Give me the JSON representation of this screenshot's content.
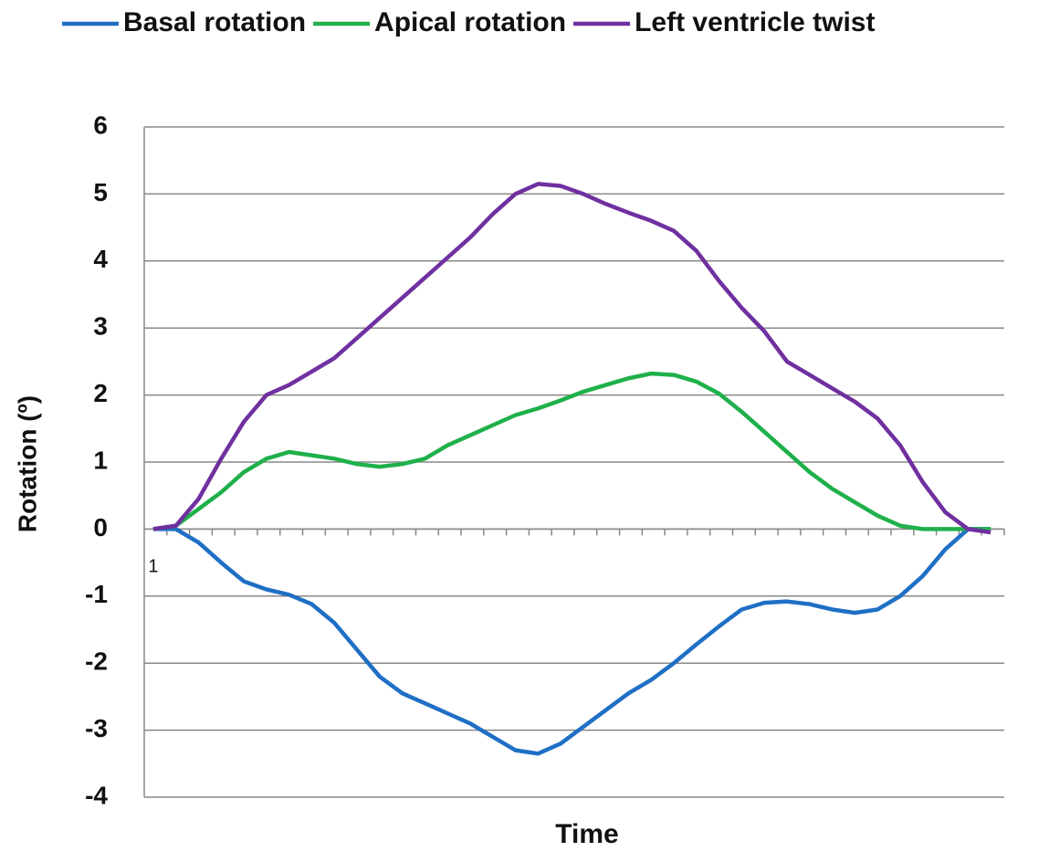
{
  "chart_data": {
    "type": "line",
    "categories": [
      "1",
      null,
      null,
      null,
      null,
      null,
      null,
      null,
      null,
      null,
      null,
      null,
      null,
      null,
      null,
      null,
      null,
      null,
      null,
      null,
      null,
      null,
      null,
      null,
      null,
      null,
      null,
      null,
      null,
      null,
      null,
      null,
      null,
      null,
      null,
      null,
      null,
      null
    ],
    "series": [
      {
        "name": "Basal rotation",
        "color": "#1f6fc5",
        "values": [
          0,
          0,
          -0.2,
          -0.5,
          -0.78,
          -0.9,
          -0.98,
          -1.12,
          -1.4,
          -1.8,
          -2.2,
          -2.45,
          -2.6,
          -2.75,
          -2.9,
          -3.1,
          -3.3,
          -3.35,
          -3.2,
          -2.95,
          -2.7,
          -2.45,
          -2.25,
          -2.0,
          -1.72,
          -1.45,
          -1.2,
          -1.1,
          -1.08,
          -1.12,
          -1.2,
          -1.25,
          -1.2,
          -1.0,
          -0.7,
          -0.3,
          0,
          0
        ]
      },
      {
        "name": "Apical rotation",
        "color": "#1fb04a",
        "values": [
          0,
          0.05,
          0.3,
          0.55,
          0.85,
          1.05,
          1.15,
          1.1,
          1.05,
          0.97,
          0.93,
          0.97,
          1.05,
          1.25,
          1.4,
          1.55,
          1.7,
          1.8,
          1.92,
          2.05,
          2.15,
          2.25,
          2.32,
          2.3,
          2.2,
          2.02,
          1.75,
          1.45,
          1.15,
          0.85,
          0.6,
          0.4,
          0.2,
          0.05,
          0,
          0,
          0,
          0
        ]
      },
      {
        "name": "Left ventricle twist",
        "color": "#7030a0",
        "values": [
          0,
          0.05,
          0.45,
          1.05,
          1.6,
          2.0,
          2.15,
          2.35,
          2.55,
          2.85,
          3.15,
          3.45,
          3.75,
          4.05,
          4.35,
          4.7,
          5.0,
          5.15,
          5.12,
          5.0,
          4.85,
          4.72,
          4.6,
          4.45,
          4.15,
          3.7,
          3.3,
          2.95,
          2.5,
          2.3,
          2.1,
          1.9,
          1.65,
          1.25,
          0.7,
          0.25,
          0,
          -0.05
        ]
      }
    ],
    "x_label": "Time",
    "y_label": "Rotation (º)",
    "ylim": [
      -4,
      6
    ],
    "yticks": [
      -4,
      -3,
      -2,
      -1,
      0,
      1,
      2,
      3,
      4,
      5,
      6
    ],
    "grid": true,
    "legend": "top"
  }
}
